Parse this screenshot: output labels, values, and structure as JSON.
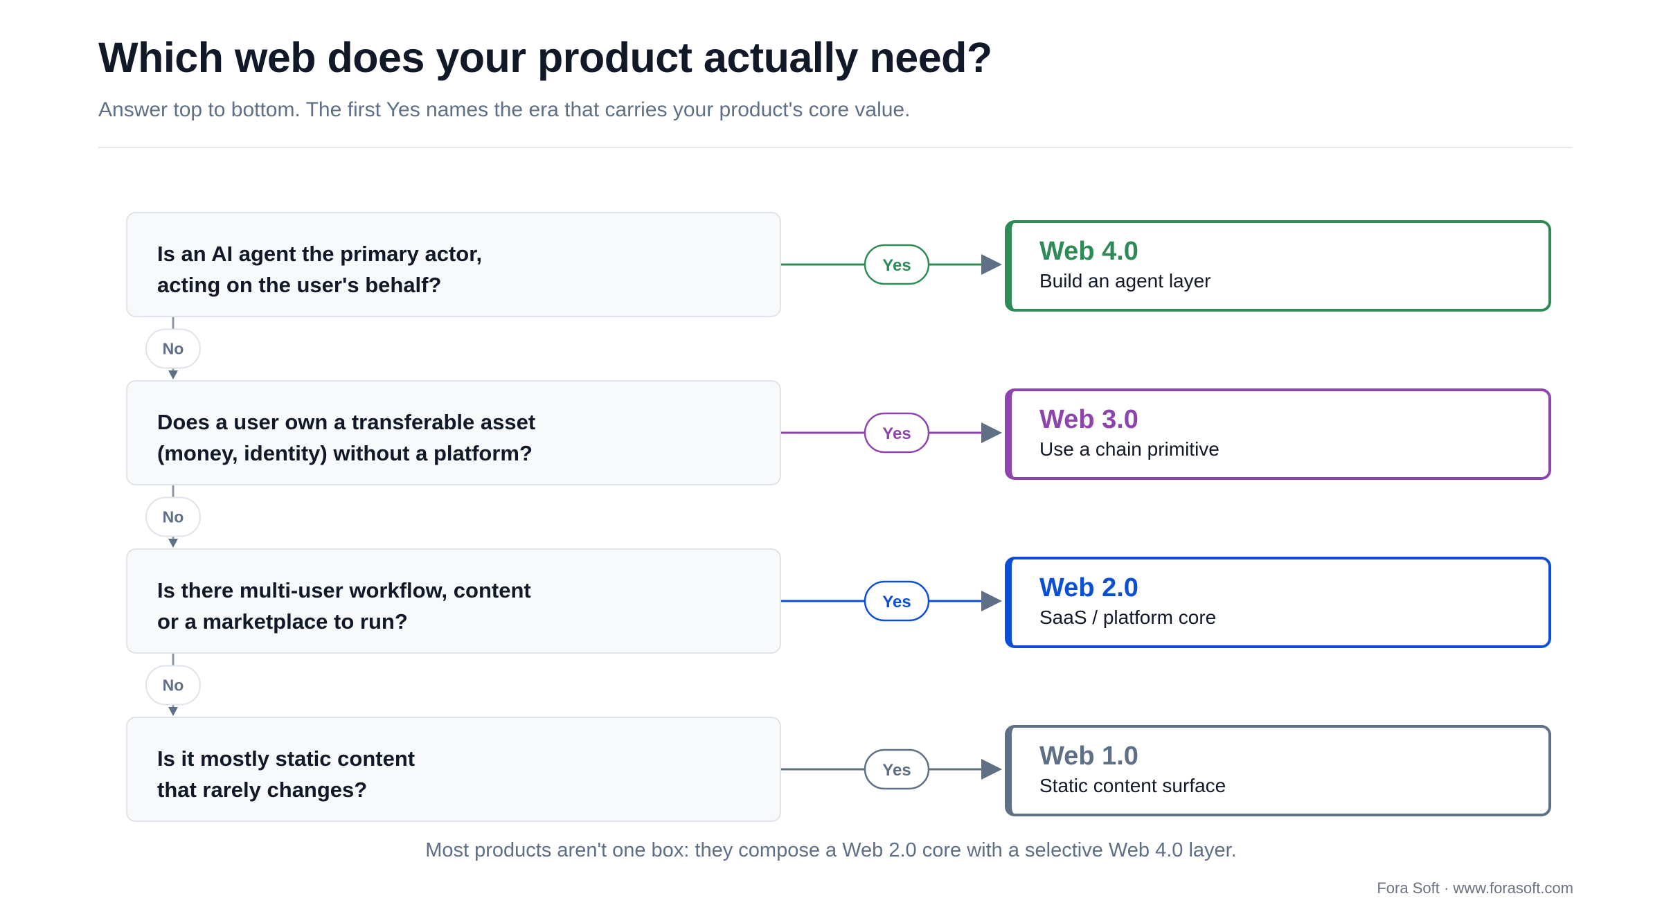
{
  "title": "Which web does your product actually need?",
  "subtitle": "Answer top to bottom. The first Yes names the era that carries your product's core value.",
  "yes_label": "Yes",
  "no_label": "No",
  "steps": [
    {
      "question": [
        "Is an AI agent the primary actor,",
        "acting on the user's behalf?"
      ],
      "era": "Web 4.0",
      "action": "Build an agent layer",
      "color": "#2e8b57"
    },
    {
      "question": [
        "Does a user own a transferable asset",
        "(money, identity) without a platform?"
      ],
      "era": "Web 3.0",
      "action": "Use a chain primitive",
      "color": "#8e44ad"
    },
    {
      "question": [
        "Is there multi-user workflow, content",
        "or a marketplace to run?"
      ],
      "era": "Web 2.0",
      "action": "SaaS / platform core",
      "color": "#0b4fd6"
    },
    {
      "question": [
        "Is it mostly static content",
        "that rarely changes?"
      ],
      "era": "Web 1.0",
      "action": "Static content surface",
      "color": "#5f6f86"
    }
  ],
  "footnote": "Most products aren't one box: they compose a Web 2.0 core with a selective Web 4.0 layer.",
  "credit": "Fora Soft · www.forasoft.com"
}
